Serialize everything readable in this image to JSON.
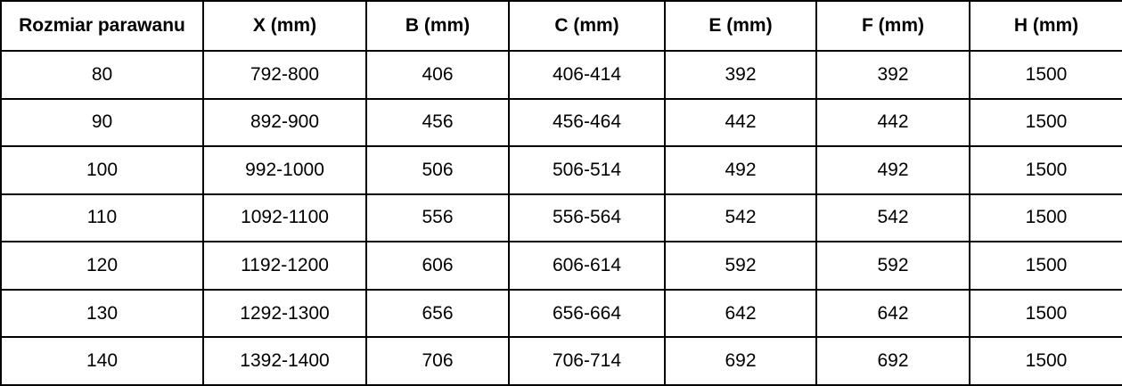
{
  "chart_data": {
    "type": "table",
    "columns": [
      "Rozmiar parawanu",
      "X (mm)",
      "B (mm)",
      "C (mm)",
      "E (mm)",
      "F (mm)",
      "H (mm)"
    ],
    "rows": [
      [
        "80",
        "792-800",
        "406",
        "406-414",
        "392",
        "392",
        "1500"
      ],
      [
        "90",
        "892-900",
        "456",
        "456-464",
        "442",
        "442",
        "1500"
      ],
      [
        "100",
        "992-1000",
        "506",
        "506-514",
        "492",
        "492",
        "1500"
      ],
      [
        "110",
        "1092-1100",
        "556",
        "556-564",
        "542",
        "542",
        "1500"
      ],
      [
        "120",
        "1192-1200",
        "606",
        "606-614",
        "592",
        "592",
        "1500"
      ],
      [
        "130",
        "1292-1300",
        "656",
        "656-664",
        "642",
        "642",
        "1500"
      ],
      [
        "140",
        "1392-1400",
        "706",
        "706-714",
        "692",
        "692",
        "1500"
      ]
    ]
  },
  "colors": {
    "border": "#000000",
    "text": "#000000",
    "background": "#ffffff"
  }
}
